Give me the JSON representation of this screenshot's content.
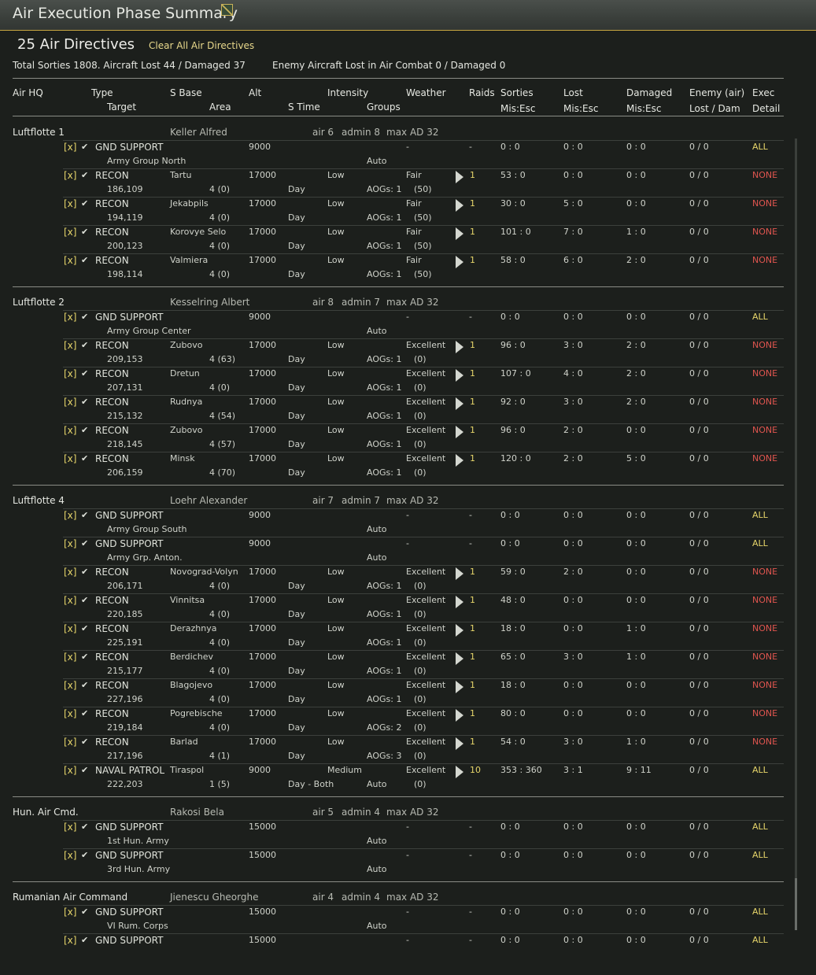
{
  "window": {
    "title": "Air Execution Phase Summary",
    "icon": "map-icon"
  },
  "summary": {
    "directive_count": "25 Air Directives",
    "clear_all_label": "Clear All Air Directives",
    "totals": "Total Sorties 1808. Aircraft Lost 44 / Damaged 37",
    "enemy": "Enemy Aircraft Lost in Air Combat 0 / Damaged 0"
  },
  "columns": {
    "air_hq": "Air HQ",
    "type": "Type",
    "target": "Target",
    "s_base": "S Base",
    "area": "Area",
    "alt": "Alt",
    "s_time": "S Time",
    "intensity": "Intensity",
    "groups": "Groups",
    "weather": "Weather",
    "raids": "Raids",
    "sorties": "Sorties",
    "sorties_sub": "Mis:Esc",
    "lost": "Lost",
    "lost_sub": "Mis:Esc",
    "damaged": "Damaged",
    "damaged_sub": "Mis:Esc",
    "enemy": "Enemy (air)",
    "enemy_sub": "Lost / Dam",
    "exec": "Exec",
    "exec_sub": "Detail"
  },
  "groups": [
    {
      "name": "Luftflotte 1",
      "commander": "Keller Alfred",
      "air": "air 6",
      "admin": "admin 8",
      "max": "max AD 32",
      "rows": [
        {
          "mark": "[x]",
          "type": "GND SUPPORT",
          "base": "",
          "alt": "9000",
          "intensity": "",
          "weather": "-",
          "raids": "-",
          "sorties": "0 : 0",
          "lost": "0 : 0",
          "dam": "0 : 0",
          "enemy": "0 / 0",
          "exec": "ALL",
          "target": "Army Group North",
          "area": "",
          "stime": "",
          "groups": "Auto",
          "gnum": "",
          "play": false
        },
        {
          "mark": "[x]",
          "type": "RECON",
          "base": "Tartu",
          "alt": "17000",
          "intensity": "Low",
          "weather": "Fair",
          "raids": "1",
          "sorties": "53 : 0",
          "lost": "0 : 0",
          "dam": "0 : 0",
          "enemy": "0 / 0",
          "exec": "NONE",
          "target": "186,109",
          "area": "4 (0)",
          "stime": "Day",
          "groups": "AOGs: 1",
          "gnum": "(50)",
          "play": true
        },
        {
          "mark": "[x]",
          "type": "RECON",
          "base": "Jekabpils",
          "alt": "17000",
          "intensity": "Low",
          "weather": "Fair",
          "raids": "1",
          "sorties": "30 : 0",
          "lost": "5 : 0",
          "dam": "0 : 0",
          "enemy": "0 / 0",
          "exec": "NONE",
          "target": "194,119",
          "area": "4 (0)",
          "stime": "Day",
          "groups": "AOGs: 1",
          "gnum": "(50)",
          "play": true
        },
        {
          "mark": "[x]",
          "type": "RECON",
          "base": "Korovye Selo",
          "alt": "17000",
          "intensity": "Low",
          "weather": "Fair",
          "raids": "1",
          "sorties": "101 : 0",
          "lost": "7 : 0",
          "dam": "1 : 0",
          "enemy": "0 / 0",
          "exec": "NONE",
          "target": "200,123",
          "area": "4 (0)",
          "stime": "Day",
          "groups": "AOGs: 1",
          "gnum": "(50)",
          "play": true
        },
        {
          "mark": "[x]",
          "type": "RECON",
          "base": "Valmiera",
          "alt": "17000",
          "intensity": "Low",
          "weather": "Fair",
          "raids": "1",
          "sorties": "58 : 0",
          "lost": "6 : 0",
          "dam": "2 : 0",
          "enemy": "0 / 0",
          "exec": "NONE",
          "target": "198,114",
          "area": "4 (0)",
          "stime": "Day",
          "groups": "AOGs: 1",
          "gnum": "(50)",
          "play": true
        }
      ]
    },
    {
      "name": "Luftflotte 2",
      "commander": "Kesselring Albert",
      "air": "air 8",
      "admin": "admin 7",
      "max": "max AD 32",
      "rows": [
        {
          "mark": "[x]",
          "type": "GND SUPPORT",
          "base": "",
          "alt": "9000",
          "intensity": "",
          "weather": "-",
          "raids": "-",
          "sorties": "0 : 0",
          "lost": "0 : 0",
          "dam": "0 : 0",
          "enemy": "0 / 0",
          "exec": "ALL",
          "target": "Army Group Center",
          "area": "",
          "stime": "",
          "groups": "Auto",
          "gnum": "",
          "play": false
        },
        {
          "mark": "[x]",
          "type": "RECON",
          "base": "Zubovo",
          "alt": "17000",
          "intensity": "Low",
          "weather": "Excellent",
          "raids": "1",
          "sorties": "96 : 0",
          "lost": "3 : 0",
          "dam": "2 : 0",
          "enemy": "0 / 0",
          "exec": "NONE",
          "target": "209,153",
          "area": "4 (63)",
          "stime": "Day",
          "groups": "AOGs: 1",
          "gnum": "(0)",
          "play": true
        },
        {
          "mark": "[x]",
          "type": "RECON",
          "base": "Dretun",
          "alt": "17000",
          "intensity": "Low",
          "weather": "Excellent",
          "raids": "1",
          "sorties": "107 : 0",
          "lost": "4 : 0",
          "dam": "2 : 0",
          "enemy": "0 / 0",
          "exec": "NONE",
          "target": "207,131",
          "area": "4 (0)",
          "stime": "Day",
          "groups": "AOGs: 1",
          "gnum": "(0)",
          "play": true
        },
        {
          "mark": "[x]",
          "type": "RECON",
          "base": "Rudnya",
          "alt": "17000",
          "intensity": "Low",
          "weather": "Excellent",
          "raids": "1",
          "sorties": "92 : 0",
          "lost": "3 : 0",
          "dam": "2 : 0",
          "enemy": "0 / 0",
          "exec": "NONE",
          "target": "215,132",
          "area": "4 (54)",
          "stime": "Day",
          "groups": "AOGs: 1",
          "gnum": "(0)",
          "play": true
        },
        {
          "mark": "[x]",
          "type": "RECON",
          "base": "Zubovo",
          "alt": "17000",
          "intensity": "Low",
          "weather": "Excellent",
          "raids": "1",
          "sorties": "96 : 0",
          "lost": "2 : 0",
          "dam": "0 : 0",
          "enemy": "0 / 0",
          "exec": "NONE",
          "target": "218,145",
          "area": "4 (57)",
          "stime": "Day",
          "groups": "AOGs: 1",
          "gnum": "(0)",
          "play": true
        },
        {
          "mark": "[x]",
          "type": "RECON",
          "base": "Minsk",
          "alt": "17000",
          "intensity": "Low",
          "weather": "Excellent",
          "raids": "1",
          "sorties": "120 : 0",
          "lost": "2 : 0",
          "dam": "5 : 0",
          "enemy": "0 / 0",
          "exec": "NONE",
          "target": "206,159",
          "area": "4 (70)",
          "stime": "Day",
          "groups": "AOGs: 1",
          "gnum": "(0)",
          "play": true
        }
      ]
    },
    {
      "name": "Luftflotte 4",
      "commander": "Loehr Alexander",
      "air": "air 7",
      "admin": "admin 7",
      "max": "max AD 32",
      "rows": [
        {
          "mark": "[x]",
          "type": "GND SUPPORT",
          "base": "",
          "alt": "9000",
          "intensity": "",
          "weather": "-",
          "raids": "-",
          "sorties": "0 : 0",
          "lost": "0 : 0",
          "dam": "0 : 0",
          "enemy": "0 / 0",
          "exec": "ALL",
          "target": "Army Group South",
          "area": "",
          "stime": "",
          "groups": "Auto",
          "gnum": "",
          "play": false
        },
        {
          "mark": "[x]",
          "type": "GND SUPPORT",
          "base": "",
          "alt": "9000",
          "intensity": "",
          "weather": "-",
          "raids": "-",
          "sorties": "0 : 0",
          "lost": "0 : 0",
          "dam": "0 : 0",
          "enemy": "0 / 0",
          "exec": "ALL",
          "target": "Army Grp. Anton.",
          "area": "",
          "stime": "",
          "groups": "Auto",
          "gnum": "",
          "play": false
        },
        {
          "mark": "[x]",
          "type": "RECON",
          "base": "Novograd-Volyn",
          "alt": "17000",
          "intensity": "Low",
          "weather": "Excellent",
          "raids": "1",
          "sorties": "59 : 0",
          "lost": "2 : 0",
          "dam": "0 : 0",
          "enemy": "0 / 0",
          "exec": "NONE",
          "target": "206,171",
          "area": "4 (0)",
          "stime": "Day",
          "groups": "AOGs: 1",
          "gnum": "(0)",
          "play": true
        },
        {
          "mark": "[x]",
          "type": "RECON",
          "base": "Vinnitsa",
          "alt": "17000",
          "intensity": "Low",
          "weather": "Excellent",
          "raids": "1",
          "sorties": "48 : 0",
          "lost": "0 : 0",
          "dam": "0 : 0",
          "enemy": "0 / 0",
          "exec": "NONE",
          "target": "220,185",
          "area": "4 (0)",
          "stime": "Day",
          "groups": "AOGs: 1",
          "gnum": "(0)",
          "play": true
        },
        {
          "mark": "[x]",
          "type": "RECON",
          "base": "Derazhnya",
          "alt": "17000",
          "intensity": "Low",
          "weather": "Excellent",
          "raids": "1",
          "sorties": "18 : 0",
          "lost": "0 : 0",
          "dam": "1 : 0",
          "enemy": "0 / 0",
          "exec": "NONE",
          "target": "225,191",
          "area": "4 (0)",
          "stime": "Day",
          "groups": "AOGs: 1",
          "gnum": "(0)",
          "play": true
        },
        {
          "mark": "[x]",
          "type": "RECON",
          "base": "Berdichev",
          "alt": "17000",
          "intensity": "Low",
          "weather": "Excellent",
          "raids": "1",
          "sorties": "65 : 0",
          "lost": "3 : 0",
          "dam": "1 : 0",
          "enemy": "0 / 0",
          "exec": "NONE",
          "target": "215,177",
          "area": "4 (0)",
          "stime": "Day",
          "groups": "AOGs: 1",
          "gnum": "(0)",
          "play": true
        },
        {
          "mark": "[x]",
          "type": "RECON",
          "base": "Blagojevo",
          "alt": "17000",
          "intensity": "Low",
          "weather": "Excellent",
          "raids": "1",
          "sorties": "18 : 0",
          "lost": "0 : 0",
          "dam": "0 : 0",
          "enemy": "0 / 0",
          "exec": "NONE",
          "target": "227,196",
          "area": "4 (0)",
          "stime": "Day",
          "groups": "AOGs: 1",
          "gnum": "(0)",
          "play": true
        },
        {
          "mark": "[x]",
          "type": "RECON",
          "base": "Pogrebische",
          "alt": "17000",
          "intensity": "Low",
          "weather": "Excellent",
          "raids": "1",
          "sorties": "80 : 0",
          "lost": "0 : 0",
          "dam": "0 : 0",
          "enemy": "0 / 0",
          "exec": "NONE",
          "target": "219,184",
          "area": "4 (0)",
          "stime": "Day",
          "groups": "AOGs: 2",
          "gnum": "(0)",
          "play": true
        },
        {
          "mark": "[x]",
          "type": "RECON",
          "base": "Barlad",
          "alt": "17000",
          "intensity": "Low",
          "weather": "Excellent",
          "raids": "1",
          "sorties": "54 : 0",
          "lost": "3 : 0",
          "dam": "1 : 0",
          "enemy": "0 / 0",
          "exec": "NONE",
          "target": "217,196",
          "area": "4 (1)",
          "stime": "Day",
          "groups": "AOGs: 3",
          "gnum": "(0)",
          "play": true
        },
        {
          "mark": "[x]",
          "type": "NAVAL PATROL",
          "base": "Tiraspol",
          "alt": "9000",
          "intensity": "Medium",
          "weather": "Excellent",
          "raids": "10",
          "sorties": "353 : 360",
          "lost": "3 : 1",
          "dam": "9 : 11",
          "enemy": "0 / 0",
          "exec": "ALL",
          "target": "222,203",
          "area": "1 (5)",
          "stime": "Day  - Both",
          "groups": "Auto",
          "gnum": "(0)",
          "play": true
        }
      ]
    },
    {
      "name": "Hun. Air Cmd.",
      "commander": "Rakosi Bela",
      "air": "air 5",
      "admin": "admin 4",
      "max": "max AD 32",
      "rows": [
        {
          "mark": "[x]",
          "type": "GND SUPPORT",
          "base": "",
          "alt": "15000",
          "intensity": "",
          "weather": "-",
          "raids": "-",
          "sorties": "0 : 0",
          "lost": "0 : 0",
          "dam": "0 : 0",
          "enemy": "0 / 0",
          "exec": "ALL",
          "target": "1st Hun. Army",
          "area": "",
          "stime": "",
          "groups": "Auto",
          "gnum": "",
          "play": false
        },
        {
          "mark": "[x]",
          "type": "GND SUPPORT",
          "base": "",
          "alt": "15000",
          "intensity": "",
          "weather": "-",
          "raids": "-",
          "sorties": "0 : 0",
          "lost": "0 : 0",
          "dam": "0 : 0",
          "enemy": "0 / 0",
          "exec": "ALL",
          "target": "3rd Hun. Army",
          "area": "",
          "stime": "",
          "groups": "Auto",
          "gnum": "",
          "play": false
        }
      ]
    },
    {
      "name": "Rumanian Air Command",
      "commander": "Jienescu Gheorghe",
      "air": "air 4",
      "admin": "admin 4",
      "max": "max AD 32",
      "rows": [
        {
          "mark": "[x]",
          "type": "GND SUPPORT",
          "base": "",
          "alt": "15000",
          "intensity": "",
          "weather": "-",
          "raids": "-",
          "sorties": "0 : 0",
          "lost": "0 : 0",
          "dam": "0 : 0",
          "enemy": "0 / 0",
          "exec": "ALL",
          "target": "VI Rum. Corps",
          "area": "",
          "stime": "",
          "groups": "Auto",
          "gnum": "",
          "play": false
        },
        {
          "mark": "[x]",
          "type": "GND SUPPORT",
          "base": "",
          "alt": "15000",
          "intensity": "",
          "weather": "-",
          "raids": "-",
          "sorties": "0 : 0",
          "lost": "0 : 0",
          "dam": "0 : 0",
          "enemy": "0 / 0",
          "exec": "ALL",
          "target": "",
          "area": "",
          "stime": "",
          "groups": "",
          "gnum": "",
          "play": false
        }
      ]
    }
  ],
  "colors": {
    "accent": "#e6d56a",
    "none": "#e0554f",
    "divider": "#c8a640"
  }
}
